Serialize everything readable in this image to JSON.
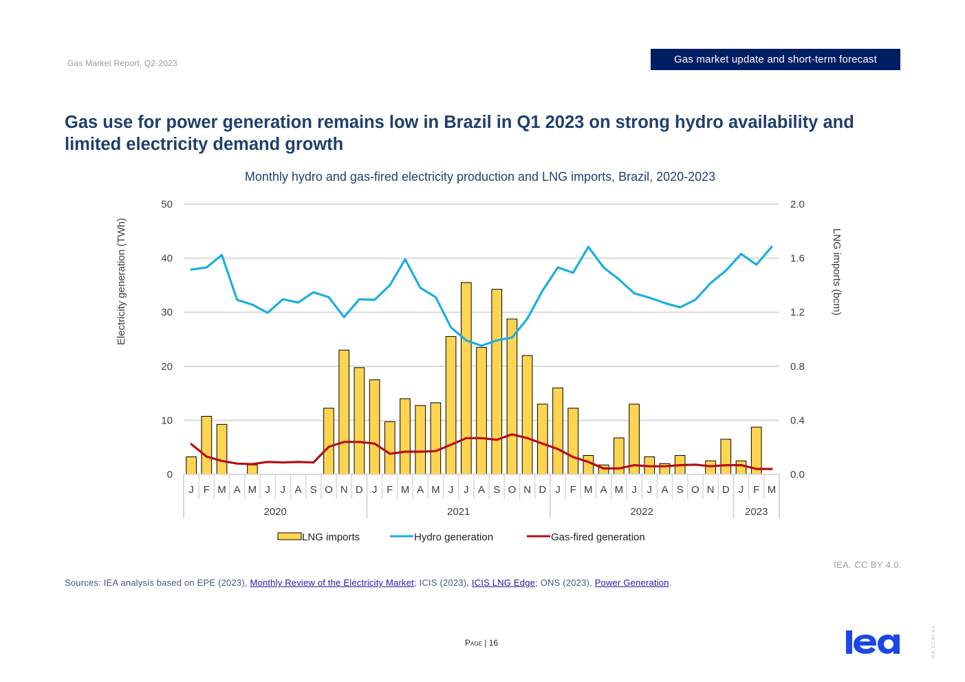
{
  "header": {
    "report_name": "Gas Market Report, Q2-2023",
    "section_banner": "Gas market update and short-term forecast"
  },
  "headline": "Gas use for power generation remains low in Brazil in Q1 2023 on strong hydro availability and limited electricity demand growth",
  "footer": {
    "credit": "IEA. CC BY 4.0.",
    "sources_prefix": "Sources: IEA analysis based on EPE (2023), ",
    "source_link_1": "Monthly Review of the Electricity Market",
    "sources_mid_1": "; ICIS (2023), ",
    "source_link_2": "ICIS LNG Edge",
    "sources_mid_2": "; ONS (2023), ",
    "source_link_3": "Power Generation",
    "sources_suffix": ".",
    "page_label": "Page",
    "page_separator": " | ",
    "page_number": "16",
    "logo_text": "iea",
    "side_credit": "IEA. CC BY 4.0."
  },
  "colors": {
    "lng_bar": "#ffd450",
    "hydro": "#1aaee1",
    "gas_fired": "#b40f0f",
    "title": "#1f3f6e",
    "banner": "#001e62",
    "logo": "#1a47e6"
  },
  "chart_data": {
    "type": "bar",
    "title": "Monthly hydro and gas-fired electricity production and LNG imports, Brazil, 2020-2023",
    "ylabel": "Electricity generation (TWh)",
    "y2label": "LNG imports (bcm)",
    "ylim": [
      0,
      50
    ],
    "y2lim": [
      0,
      2.0
    ],
    "yticks": [
      "0",
      "10",
      "20",
      "30",
      "40",
      "50"
    ],
    "y2ticks": [
      "0.0",
      "0.4",
      "0.8",
      "1.2",
      "1.6",
      "2.0"
    ],
    "grid": true,
    "legend_position": "bottom",
    "categories": [
      "J",
      "F",
      "M",
      "A",
      "M",
      "J",
      "J",
      "A",
      "S",
      "O",
      "N",
      "D",
      "J",
      "F",
      "M",
      "A",
      "M",
      "J",
      "J",
      "A",
      "S",
      "O",
      "N",
      "D",
      "J",
      "F",
      "M",
      "A",
      "M",
      "J",
      "J",
      "A",
      "S",
      "O",
      "N",
      "D",
      "J",
      "F",
      "M"
    ],
    "years": [
      {
        "label": "2020",
        "months": 12
      },
      {
        "label": "2021",
        "months": 12
      },
      {
        "label": "2022",
        "months": 12
      },
      {
        "label": "2023",
        "months": 3
      }
    ],
    "series": [
      {
        "name": "LNG imports",
        "type": "bar",
        "axis": "right",
        "values": [
          0.13,
          0.43,
          0.37,
          0,
          0.07,
          0,
          0,
          0,
          0,
          0.49,
          0.92,
          0.79,
          0.7,
          0.39,
          0.56,
          0.51,
          0.53,
          1.02,
          1.42,
          0.94,
          1.37,
          1.15,
          0.88,
          0.52,
          0.64,
          0.49,
          0.14,
          0.07,
          0.27,
          0.52,
          0.13,
          0.08,
          0.14,
          0,
          0.1,
          0.26,
          0.1,
          0.35,
          0
        ]
      },
      {
        "name": "Hydro generation",
        "type": "line",
        "axis": "left",
        "values": [
          37.9,
          38.3,
          40.6,
          32.3,
          31.4,
          29.9,
          32.4,
          31.8,
          33.7,
          32.8,
          29.1,
          32.4,
          32.3,
          35.0,
          39.8,
          34.5,
          32.8,
          27.2,
          24.8,
          23.8,
          24.8,
          25.3,
          28.8,
          34.0,
          38.3,
          37.3,
          42.1,
          38.3,
          36.1,
          33.5,
          32.7,
          31.7,
          30.9,
          32.3,
          35.4,
          37.7,
          40.8,
          38.8,
          42.1
        ]
      },
      {
        "name": "Gas-fired generation",
        "type": "line",
        "axis": "left",
        "values": [
          5.6,
          3.3,
          2.5,
          2.0,
          1.9,
          2.3,
          2.2,
          2.3,
          2.2,
          5.1,
          6.0,
          6.0,
          5.7,
          3.8,
          4.2,
          4.2,
          4.3,
          5.5,
          6.7,
          6.7,
          6.4,
          7.4,
          6.7,
          5.7,
          4.7,
          3.2,
          2.3,
          1.1,
          1.1,
          1.7,
          1.5,
          1.5,
          1.7,
          1.8,
          1.5,
          1.7,
          1.7,
          1.0,
          1.0
        ]
      }
    ]
  }
}
